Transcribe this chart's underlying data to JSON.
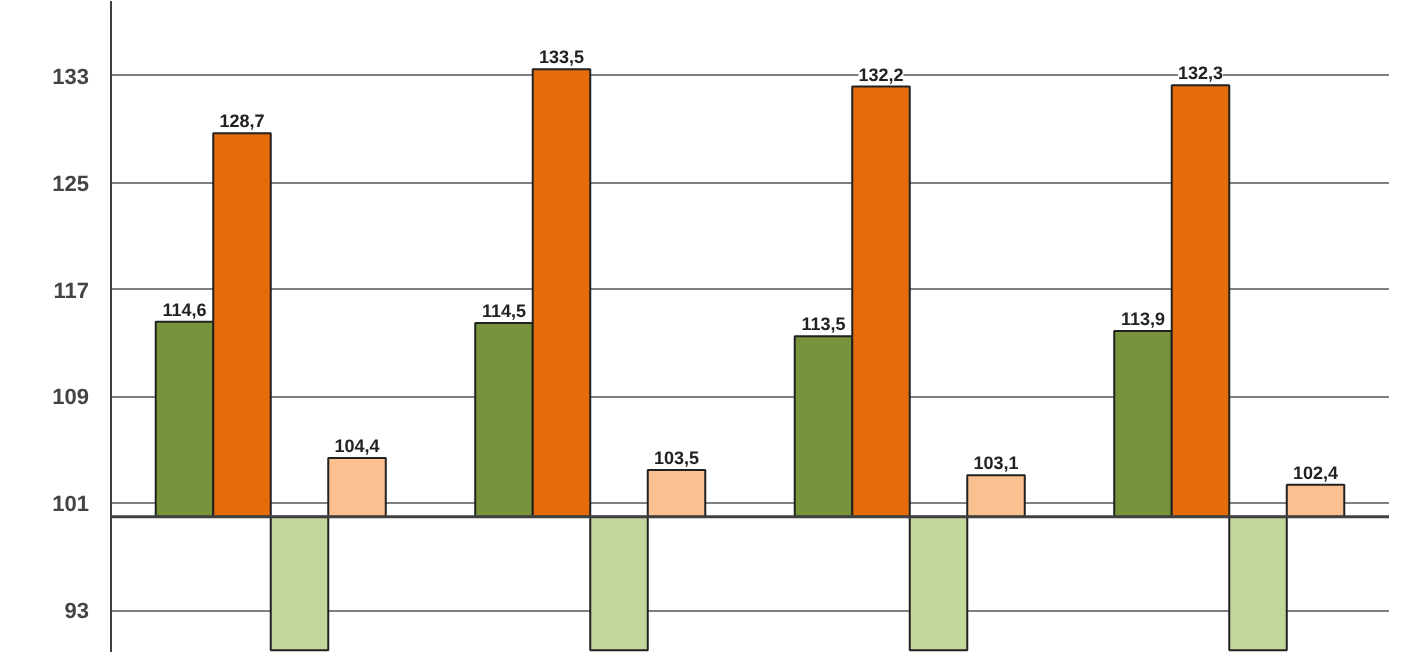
{
  "chart_data": {
    "type": "bar",
    "categories": [
      null,
      null,
      null,
      null
    ],
    "series": [
      {
        "color": "#77933c",
        "base": [
          100,
          100,
          100,
          100
        ],
        "values": [
          14.6,
          14.5,
          13.5,
          13.9
        ],
        "value_labels": [
          "114,6",
          "114,5",
          "113,5",
          "113,9"
        ]
      },
      {
        "color": "#e46c0a",
        "base": [
          100,
          100,
          100,
          100
        ],
        "values": [
          28.7,
          33.5,
          32.2,
          32.3
        ],
        "value_labels": [
          "128,7",
          "133,5",
          "132,2",
          "132,3"
        ]
      },
      {
        "color": "#c3d69b",
        "base": [
          100,
          100,
          100,
          100
        ],
        "values": [
          -10,
          -10,
          -10,
          -10
        ]
      },
      {
        "color": "#fac090",
        "base": [
          100,
          100,
          100,
          100
        ],
        "values": [
          4.4,
          3.5,
          3.1,
          2.4
        ],
        "value_labels": [
          "104,4",
          "103,5",
          "103,1",
          "102,4"
        ]
      }
    ],
    "ylim": [
      89.8,
      138.6
    ],
    "yticks": [
      93,
      101,
      109,
      117,
      125,
      133
    ],
    "ref_lines": [
      {
        "axis": "y",
        "value": 100,
        "label": null,
        "color": "#404040"
      }
    ],
    "grid": "y"
  }
}
